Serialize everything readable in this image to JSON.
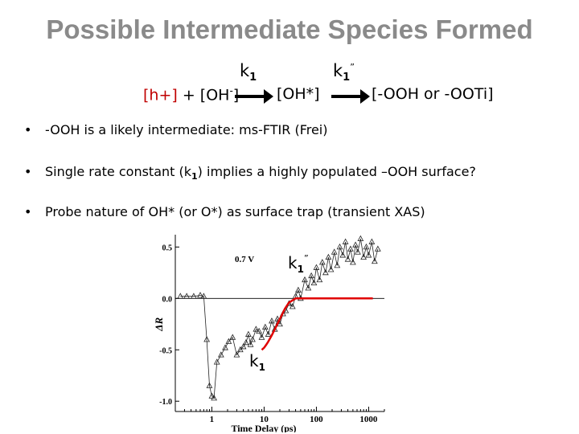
{
  "slide": {
    "title": "Possible Intermediate Species Formed"
  },
  "reaction": {
    "species1_red": "[h+]",
    "species1_rest": " + [OH",
    "species1_sup": "-",
    "species1_close": "]",
    "species2": "[OH*]",
    "species3": "[-OOH or -OOTi]",
    "k1": {
      "base": "k",
      "sub": "1"
    },
    "k1pp": {
      "base": "k",
      "sub": "1",
      "sup": "”"
    }
  },
  "bullets": [
    {
      "text": "-OOH is a likely intermediate: ms-FTIR (Frei)"
    },
    {
      "pre": "Single rate constant (k",
      "sub": "1",
      "post": ") implies a highly populated –OOH surface?"
    },
    {
      "text": "Probe nature of OH* (or O*) as surface trap (transient XAS)"
    }
  ],
  "bullet_symbol": "•",
  "chart_data": {
    "type": "line",
    "xlabel": "Time Delay (ps)",
    "ylabel": "ΔR",
    "x_scale": "log",
    "xlim": [
      0.2,
      2000
    ],
    "ylim": [
      -1.1,
      0.62
    ],
    "x_ticks": [
      "1",
      "10",
      "100",
      "1000"
    ],
    "y_ticks": [
      "0.5",
      "0.0",
      "-0.5",
      "-1.0"
    ],
    "y_tick_values": [
      0.5,
      0.0,
      -0.5,
      -1.0
    ],
    "x_tick_values": [
      1,
      10,
      100,
      1000
    ],
    "annotation": "0.7 V",
    "label_k1pp": {
      "base": "k",
      "sub": "1",
      "sup": "”"
    },
    "label_k1": {
      "base": "k",
      "sub": "1"
    },
    "baseline": 0.0,
    "series": [
      {
        "values_x": [
          0.25,
          0.33,
          0.45,
          0.6,
          0.7,
          0.8,
          0.9,
          1.0,
          1.1,
          1.25,
          1.5,
          1.8,
          2.1,
          2.5,
          3.0,
          3.5,
          4.0,
          4.5,
          5.0,
          5.5,
          6.0,
          7.0,
          8.0,
          9.0,
          10.5,
          12,
          14,
          16,
          18,
          20,
          23,
          26,
          30,
          35,
          40,
          45,
          50,
          60,
          70,
          80,
          90,
          100,
          115,
          130,
          150,
          170,
          190,
          220,
          250,
          280,
          320,
          360,
          400,
          450,
          500,
          560,
          620,
          700,
          800,
          900,
          1000,
          1150,
          1300,
          1500
        ],
        "values_y": [
          0.02,
          0.02,
          0.02,
          0.03,
          0.02,
          -0.4,
          -0.85,
          -0.95,
          -0.97,
          -0.62,
          -0.55,
          -0.48,
          -0.42,
          -0.38,
          -0.55,
          -0.5,
          -0.47,
          -0.43,
          -0.35,
          -0.45,
          -0.4,
          -0.3,
          -0.32,
          -0.38,
          -0.28,
          -0.35,
          -0.22,
          -0.3,
          -0.2,
          -0.25,
          -0.15,
          -0.12,
          -0.05,
          -0.08,
          0.02,
          0.08,
          0.0,
          0.18,
          0.1,
          0.22,
          0.15,
          0.3,
          0.18,
          0.35,
          0.25,
          0.4,
          0.28,
          0.45,
          0.32,
          0.5,
          0.42,
          0.55,
          0.38,
          0.48,
          0.35,
          0.52,
          0.45,
          0.58,
          0.4,
          0.5,
          0.42,
          0.55,
          0.36,
          0.48
        ]
      },
      {
        "values_x": [
          9,
          10,
          11,
          12,
          14,
          16,
          20,
          25,
          30,
          40,
          50,
          60,
          70,
          80,
          100,
          150,
          200,
          300,
          500,
          800,
          1200
        ],
        "values_y": [
          -0.5,
          -0.48,
          -0.45,
          -0.42,
          -0.36,
          -0.3,
          -0.2,
          -0.1,
          -0.04,
          0.0,
          0.0,
          0.0,
          0.0,
          0.0,
          0.0,
          0.0,
          0.0,
          0.0,
          0.0,
          0.0,
          0.0
        ],
        "color": "#e00000"
      }
    ]
  },
  "colors": {
    "title": "#8a8a8a",
    "accent_red": "#c00000",
    "fit_red": "#e00000"
  }
}
